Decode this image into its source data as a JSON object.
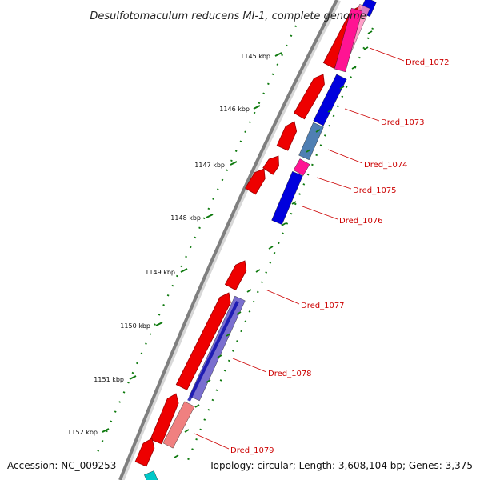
{
  "title": "Desulfotomaculum reducens MI-1, complete genome",
  "footer": {
    "accession": "Accession: NC_009253",
    "summary": "Topology: circular; Length: 3,608,104 bp; Genes: 3,375"
  },
  "colors": {
    "backbone": "#7f7f7f",
    "tick": "#0f7a0f",
    "label": "#cc0000",
    "forward_cds": "#ee0000",
    "reverse_blue": "#0000dd",
    "reverse_magenta": "#ff1493",
    "reverse_pink": "#ff8fbf",
    "reverse_steel": "#4f7fb3",
    "reverse_lavender": "#7a6fcf",
    "reverse_salmon": "#f08080",
    "reverse_cyan": "#00c8c8"
  },
  "ticks": [
    "1145 kbp",
    "1146 kbp",
    "1147 kbp",
    "1148 kbp",
    "1149 kbp",
    "1150 kbp",
    "1151 kbp",
    "1152 kbp"
  ],
  "gene_labels": [
    "Dred_1072",
    "Dred_1073",
    "Dred_1074",
    "Dred_1075",
    "Dred_1076",
    "Dred_1077",
    "Dred_1078",
    "Dred_1079"
  ]
}
